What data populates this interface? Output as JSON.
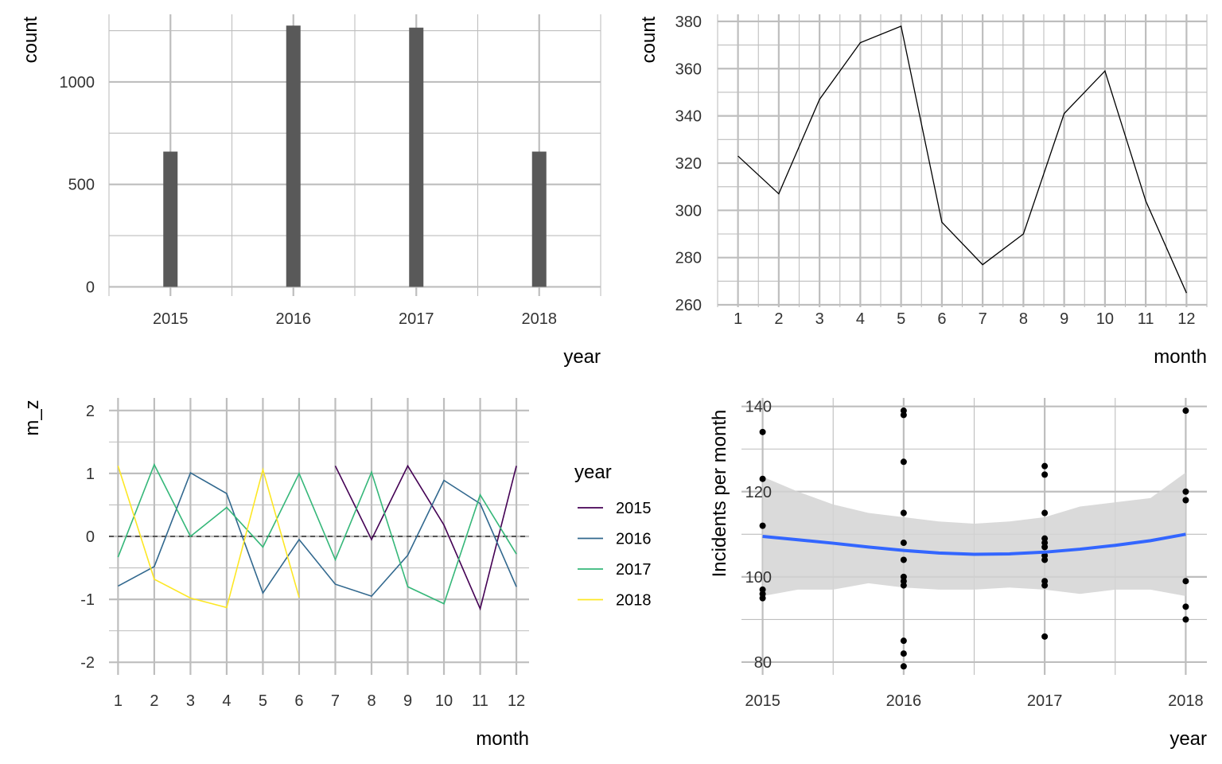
{
  "chart_data": [
    {
      "id": "bars",
      "type": "bar",
      "xlabel": "year",
      "ylabel": "count",
      "categories": [
        "2015",
        "2016",
        "2017",
        "2018"
      ],
      "values": [
        660,
        1275,
        1265,
        660
      ],
      "ylim": [
        -45,
        1330
      ],
      "y_ticks": [
        "0",
        "500",
        "1000"
      ],
      "grid": true,
      "colors": {
        "bar": "#595959",
        "grid": "#bebebe"
      }
    },
    {
      "id": "monthly",
      "type": "line",
      "xlabel": "month",
      "ylabel": "count",
      "x": [
        1,
        2,
        3,
        4,
        5,
        6,
        7,
        8,
        9,
        10,
        11,
        12
      ],
      "y": [
        323,
        307,
        347,
        371,
        378,
        295,
        277,
        290,
        341,
        359,
        304,
        265
      ],
      "ylim": [
        259,
        383
      ],
      "x_ticks": [
        "1",
        "2",
        "3",
        "4",
        "5",
        "6",
        "7",
        "8",
        "9",
        "10",
        "11",
        "12"
      ],
      "y_ticks": [
        "260",
        "280",
        "300",
        "320",
        "340",
        "360",
        "380"
      ],
      "grid": true,
      "colors": {
        "line": "#000000",
        "grid": "#bebebe"
      }
    },
    {
      "id": "mz",
      "type": "line",
      "xlabel": "month",
      "ylabel": "m_z",
      "xlim": [
        0.75,
        12.35
      ],
      "ylim": [
        -2.2,
        2.2
      ],
      "x_ticks": [
        "1",
        "2",
        "3",
        "4",
        "5",
        "6",
        "7",
        "8",
        "9",
        "10",
        "11",
        "12"
      ],
      "y_ticks": [
        "-2",
        "-1",
        "0",
        "1",
        "2"
      ],
      "reference_line": 0,
      "legend": {
        "title": "year",
        "placement": "right"
      },
      "series": [
        {
          "name": "2015",
          "color": "#440154",
          "x": [
            7,
            8,
            9,
            10,
            11,
            12
          ],
          "y": [
            1.12,
            -0.05,
            1.12,
            0.18,
            -1.15,
            1.12
          ]
        },
        {
          "name": "2016",
          "color": "#31688e",
          "x": [
            1,
            2,
            3,
            4,
            5,
            6,
            7,
            8,
            9,
            10,
            11,
            12
          ],
          "y": [
            -0.79,
            -0.48,
            1.01,
            0.68,
            -0.9,
            -0.05,
            -0.76,
            -0.95,
            -0.3,
            0.89,
            0.52,
            -0.8
          ]
        },
        {
          "name": "2017",
          "color": "#35b779",
          "x": [
            1,
            2,
            3,
            4,
            5,
            6,
            7,
            8,
            9,
            10,
            11,
            12
          ],
          "y": [
            -0.33,
            1.14,
            0.0,
            0.46,
            -0.17,
            1.0,
            -0.37,
            1.02,
            -0.8,
            -1.07,
            0.66,
            -0.28
          ]
        },
        {
          "name": "2018",
          "color": "#fde725",
          "x": [
            1,
            2,
            3,
            4,
            5,
            6
          ],
          "y": [
            1.12,
            -0.68,
            -0.98,
            -1.13,
            1.06,
            -0.97
          ]
        }
      ],
      "colors": {
        "grid": "#bebebe",
        "reference": "#333333"
      }
    },
    {
      "id": "scatter",
      "type": "scatter",
      "xlabel": "year",
      "ylabel": "Incidents per month",
      "xlim": [
        2014.85,
        2018.15
      ],
      "ylim": [
        77,
        142
      ],
      "x_ticks": [
        "2015",
        "2016",
        "2017",
        "2018"
      ],
      "y_ticks": [
        "80",
        "100",
        "120",
        "140"
      ],
      "points": [
        [
          2015,
          134
        ],
        [
          2015,
          123
        ],
        [
          2015,
          112
        ],
        [
          2015,
          97
        ],
        [
          2015,
          96
        ],
        [
          2015,
          95
        ],
        [
          2016,
          139
        ],
        [
          2016,
          138
        ],
        [
          2016,
          127
        ],
        [
          2016,
          115
        ],
        [
          2016,
          108
        ],
        [
          2016,
          104
        ],
        [
          2016,
          100
        ],
        [
          2016,
          99
        ],
        [
          2016,
          98
        ],
        [
          2016,
          85
        ],
        [
          2016,
          82
        ],
        [
          2016,
          79
        ],
        [
          2017,
          126
        ],
        [
          2017,
          124
        ],
        [
          2017,
          115
        ],
        [
          2017,
          109
        ],
        [
          2017,
          108
        ],
        [
          2017,
          107
        ],
        [
          2017,
          105
        ],
        [
          2017,
          104
        ],
        [
          2017,
          99
        ],
        [
          2017,
          98
        ],
        [
          2017,
          86
        ],
        [
          2018,
          139
        ],
        [
          2018,
          120
        ],
        [
          2018,
          118
        ],
        [
          2018,
          99
        ],
        [
          2018,
          93
        ],
        [
          2018,
          90
        ]
      ],
      "smooth": {
        "x": [
          2015,
          2015.25,
          2015.5,
          2015.75,
          2016,
          2016.25,
          2016.5,
          2016.75,
          2017,
          2017.25,
          2017.5,
          2017.75,
          2018
        ],
        "y": [
          109.5,
          108.7,
          107.9,
          107.0,
          106.2,
          105.6,
          105.3,
          105.4,
          105.8,
          106.5,
          107.4,
          108.5,
          110.0
        ],
        "upper": [
          123.5,
          120,
          117,
          115,
          114,
          113,
          112.5,
          113,
          114,
          116.5,
          117.5,
          118.5,
          124.5
        ],
        "lower": [
          95.5,
          97,
          97,
          98.5,
          97.5,
          97,
          97,
          97.5,
          97,
          96,
          97,
          97,
          95.5
        ]
      },
      "colors": {
        "point": "#000000",
        "line": "#3366ff",
        "band": "#d3d3d3",
        "grid": "#bebebe"
      }
    }
  ]
}
